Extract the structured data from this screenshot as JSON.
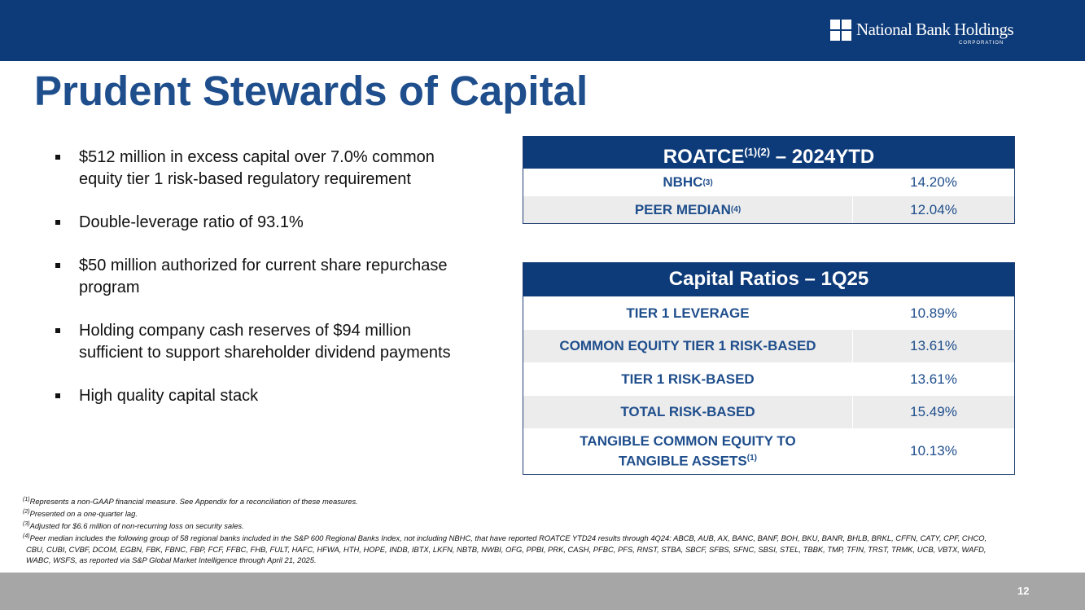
{
  "header": {
    "logo_name": "National Bank Holdings",
    "logo_sub": "CORPORATION",
    "title": "Prudent Stewards of Capital"
  },
  "bullets": [
    "$512 million in excess capital over 7.0% common equity tier 1 risk-based regulatory requirement",
    "Double-leverage ratio of 93.1%",
    "$50 million authorized for current share repurchase program",
    "Holding company cash reserves of $94 million sufficient to support shareholder dividend payments",
    "High quality capital stack"
  ],
  "roatce_table": {
    "title": "ROATCE",
    "title_sup": "(1)(2)",
    "title_suffix": " – 2024YTD",
    "rows": [
      {
        "label": "NBHC",
        "sup": "(3)",
        "value": "14.20%"
      },
      {
        "label": "PEER MEDIAN",
        "sup": "(4)",
        "value": "12.04%"
      }
    ]
  },
  "capital_table": {
    "title": "Capital Ratios – 1Q25",
    "rows": [
      {
        "label": "TIER 1 LEVERAGE",
        "value": "10.89%"
      },
      {
        "label": "COMMON EQUITY TIER 1 RISK-BASED",
        "value": "13.61%"
      },
      {
        "label": "TIER 1 RISK-BASED",
        "value": "13.61%"
      },
      {
        "label": "TOTAL RISK-BASED",
        "value": "15.49%"
      },
      {
        "label": "TANGIBLE COMMON EQUITY TO TANGIBLE ASSETS",
        "sup": "(1)",
        "value": "10.13%"
      }
    ]
  },
  "footnotes": [
    {
      "marker": "(1)",
      "text": "Represents a non-GAAP financial measure.  See Appendix for a reconciliation of these measures."
    },
    {
      "marker": "(2)",
      "text": "Presented on a one-quarter lag."
    },
    {
      "marker": "(3)",
      "text": "Adjusted for $6.6 million of non-recurring loss on security sales."
    },
    {
      "marker": "(4)",
      "text": "Peer median includes the following group of 58 regional banks included in the S&P 600 Regional Banks Index, not including NBHC, that have reported ROATCE YTD24 results through 4Q24: ABCB, AUB, AX, BANC, BANF, BOH, BKU, BANR, BHLB, BRKL, CFFN, CATY, CPF, CHCO, CBU, CUBI, CVBF, DCOM, EGBN, FBK, FBNC, FBP, FCF, FFBC, FHB, FULT, HAFC, HFWA, HTH, HOPE, INDB, IBTX, LKFN, NBTB, NWBI, OFG, PPBI, PRK, CASH, PFBC, PFS, RNST, STBA, SBCF, SFBS, SFNC, SBSI, STEL, TBBK, TMP, TFIN, TRST, TRMK, UCB, VBTX, WAFD, WABC, WSFS, as reported via S&P Global Market Intelligence through April 21, 2025."
    }
  ],
  "page_number": "12"
}
